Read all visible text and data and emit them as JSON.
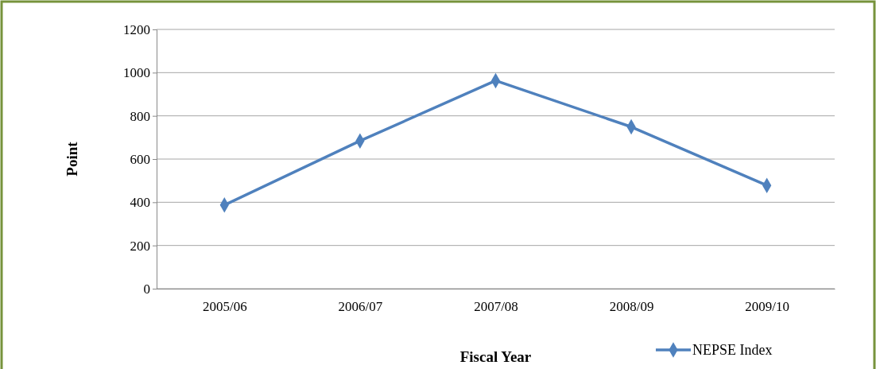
{
  "chart_data": {
    "type": "line",
    "xlabel": "Fiscal Year",
    "ylabel": "Point",
    "categories": [
      "2005/06",
      "2006/07",
      "2007/08",
      "2008/09",
      "2009/10"
    ],
    "series": [
      {
        "name": "NEPSE Index",
        "color": "#4f81bd",
        "values": [
          387,
          684,
          963,
          749,
          478
        ]
      }
    ],
    "ylim": [
      0,
      1200
    ],
    "yticks": [
      0,
      200,
      400,
      600,
      800,
      1000,
      1200
    ],
    "grid": "y",
    "legend": "bottom right",
    "marker": "diamond",
    "line_style": "solid"
  }
}
